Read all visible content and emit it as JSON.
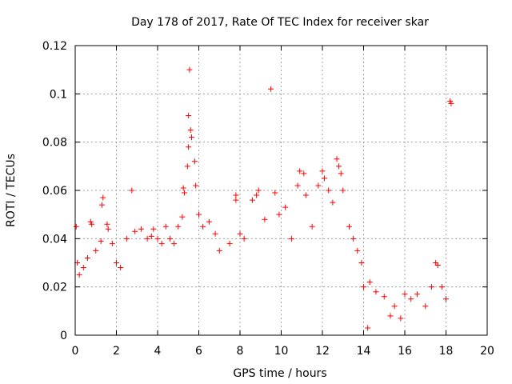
{
  "chart_data": {
    "type": "scatter",
    "title": "Day 178 of 2017, Rate Of TEC Index for receiver skar",
    "xlabel": "GPS time / hours",
    "ylabel": "ROTI / TECUs",
    "xlim": [
      0,
      20
    ],
    "ylim": [
      0,
      0.12
    ],
    "xticks": [
      0,
      2,
      4,
      6,
      8,
      10,
      12,
      14,
      16,
      18,
      20
    ],
    "yticks": [
      0,
      0.02,
      0.04,
      0.06,
      0.08,
      0.1,
      0.12
    ],
    "xtick_labels": [
      "0",
      "2",
      "4",
      "6",
      "8",
      "10",
      "12",
      "14",
      "16",
      "18",
      "20"
    ],
    "ytick_labels": [
      "0",
      "0.02",
      "0.04",
      "0.06",
      "0.08",
      "0.1",
      "0.12"
    ],
    "grid": true,
    "marker": "+",
    "color": "#ff0000",
    "series": [
      {
        "name": "ROTI",
        "points": [
          [
            0.05,
            0.045
          ],
          [
            0.1,
            0.03
          ],
          [
            0.2,
            0.025
          ],
          [
            0.4,
            0.028
          ],
          [
            0.6,
            0.032
          ],
          [
            0.75,
            0.047
          ],
          [
            0.8,
            0.046
          ],
          [
            1.0,
            0.035
          ],
          [
            1.25,
            0.039
          ],
          [
            1.3,
            0.054
          ],
          [
            1.35,
            0.057
          ],
          [
            1.55,
            0.046
          ],
          [
            1.6,
            0.044
          ],
          [
            1.8,
            0.038
          ],
          [
            2.0,
            0.03
          ],
          [
            2.2,
            0.028
          ],
          [
            2.5,
            0.04
          ],
          [
            2.75,
            0.06
          ],
          [
            2.9,
            0.043
          ],
          [
            3.2,
            0.044
          ],
          [
            3.5,
            0.04
          ],
          [
            3.7,
            0.041
          ],
          [
            3.8,
            0.044
          ],
          [
            4.0,
            0.04
          ],
          [
            4.2,
            0.038
          ],
          [
            4.4,
            0.045
          ],
          [
            4.6,
            0.04
          ],
          [
            4.8,
            0.038
          ],
          [
            5.0,
            0.045
          ],
          [
            5.2,
            0.049
          ],
          [
            5.25,
            0.061
          ],
          [
            5.3,
            0.059
          ],
          [
            5.45,
            0.07
          ],
          [
            5.5,
            0.078
          ],
          [
            5.5,
            0.091
          ],
          [
            5.55,
            0.11
          ],
          [
            5.6,
            0.085
          ],
          [
            5.65,
            0.082
          ],
          [
            5.8,
            0.072
          ],
          [
            5.85,
            0.062
          ],
          [
            6.0,
            0.05
          ],
          [
            6.2,
            0.045
          ],
          [
            6.5,
            0.047
          ],
          [
            6.8,
            0.042
          ],
          [
            7.0,
            0.035
          ],
          [
            7.5,
            0.038
          ],
          [
            7.8,
            0.058
          ],
          [
            7.8,
            0.056
          ],
          [
            8.0,
            0.042
          ],
          [
            8.2,
            0.04
          ],
          [
            8.6,
            0.056
          ],
          [
            8.8,
            0.058
          ],
          [
            8.9,
            0.06
          ],
          [
            9.2,
            0.048
          ],
          [
            9.5,
            0.102
          ],
          [
            9.7,
            0.059
          ],
          [
            9.9,
            0.05
          ],
          [
            10.2,
            0.053
          ],
          [
            10.5,
            0.04
          ],
          [
            10.8,
            0.062
          ],
          [
            10.9,
            0.068
          ],
          [
            11.1,
            0.067
          ],
          [
            11.2,
            0.058
          ],
          [
            11.5,
            0.045
          ],
          [
            11.8,
            0.062
          ],
          [
            12.0,
            0.068
          ],
          [
            12.1,
            0.065
          ],
          [
            12.3,
            0.06
          ],
          [
            12.5,
            0.055
          ],
          [
            12.7,
            0.073
          ],
          [
            12.8,
            0.07
          ],
          [
            12.9,
            0.067
          ],
          [
            13.0,
            0.06
          ],
          [
            13.3,
            0.045
          ],
          [
            13.5,
            0.04
          ],
          [
            13.7,
            0.035
          ],
          [
            13.9,
            0.03
          ],
          [
            14.0,
            0.02
          ],
          [
            14.2,
            0.003
          ],
          [
            14.3,
            0.022
          ],
          [
            14.6,
            0.018
          ],
          [
            15.0,
            0.016
          ],
          [
            15.3,
            0.008
          ],
          [
            15.5,
            0.012
          ],
          [
            15.8,
            0.007
          ],
          [
            16.0,
            0.017
          ],
          [
            16.3,
            0.015
          ],
          [
            16.6,
            0.017
          ],
          [
            17.0,
            0.012
          ],
          [
            17.3,
            0.02
          ],
          [
            17.5,
            0.03
          ],
          [
            17.6,
            0.029
          ],
          [
            17.8,
            0.02
          ],
          [
            18.0,
            0.015
          ],
          [
            18.2,
            0.097
          ],
          [
            18.25,
            0.096
          ]
        ]
      }
    ]
  }
}
